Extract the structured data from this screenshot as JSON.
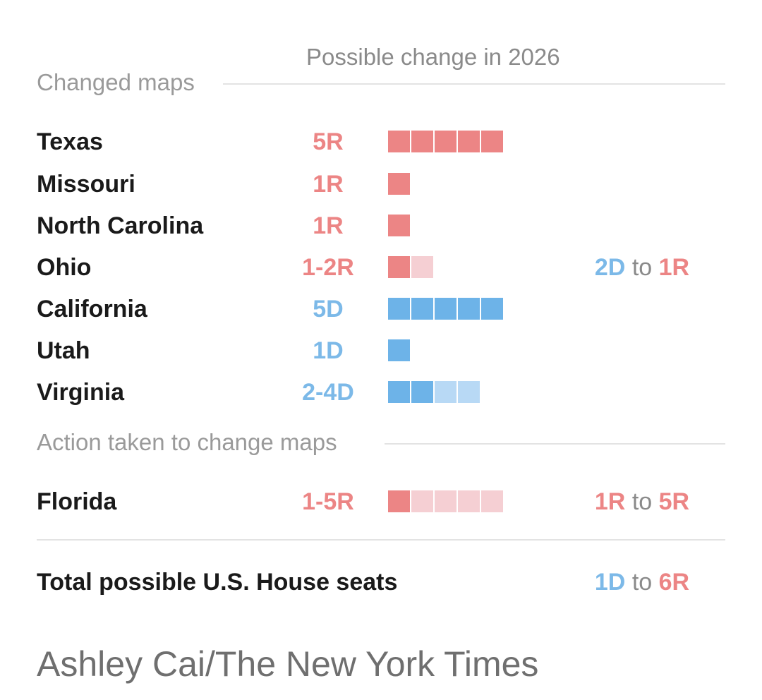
{
  "header": {
    "column_label": "Possible change in 2026"
  },
  "sections": [
    {
      "title": "Changed maps"
    },
    {
      "title": "Action taken to change maps"
    }
  ],
  "colors": {
    "red": "#ec8585",
    "red_light": "#f5cfd3",
    "blue": "#6db3e8",
    "blue_light": "#b8d9f5"
  },
  "chart_data": {
    "type": "table",
    "title": "Possible change in 2026",
    "rows": [
      {
        "state": "Texas",
        "amount": "5R",
        "party": "R",
        "min_seats": 5,
        "max_seats": 5,
        "note": null
      },
      {
        "state": "Missouri",
        "amount": "1R",
        "party": "R",
        "min_seats": 1,
        "max_seats": 1,
        "note": null
      },
      {
        "state": "North Carolina",
        "amount": "1R",
        "party": "R",
        "min_seats": 1,
        "max_seats": 1,
        "note": null
      },
      {
        "state": "Ohio",
        "amount": "1-2R",
        "party": "R",
        "min_seats": 1,
        "max_seats": 2,
        "note": {
          "from": "2D",
          "from_party": "D",
          "connector": "to",
          "to": "1R",
          "to_party": "R"
        }
      },
      {
        "state": "California",
        "amount": "5D",
        "party": "D",
        "min_seats": 5,
        "max_seats": 5,
        "note": null
      },
      {
        "state": "Utah",
        "amount": "1D",
        "party": "D",
        "min_seats": 1,
        "max_seats": 1,
        "note": null
      },
      {
        "state": "Virginia",
        "amount": "2-4D",
        "party": "D",
        "min_seats": 2,
        "max_seats": 4,
        "note": null
      }
    ],
    "action_rows": [
      {
        "state": "Florida",
        "amount": "1-5R",
        "party": "R",
        "min_seats": 1,
        "max_seats": 5,
        "note": {
          "from": "1R",
          "from_party": "R",
          "connector": "to",
          "to": "5R",
          "to_party": "R"
        }
      }
    ],
    "total": {
      "label": "Total possible U.S. House seats",
      "from": "1D",
      "from_party": "D",
      "connector": "to",
      "to": "6R",
      "to_party": "R"
    }
  },
  "credit": "Ashley Cai/The New York Times"
}
